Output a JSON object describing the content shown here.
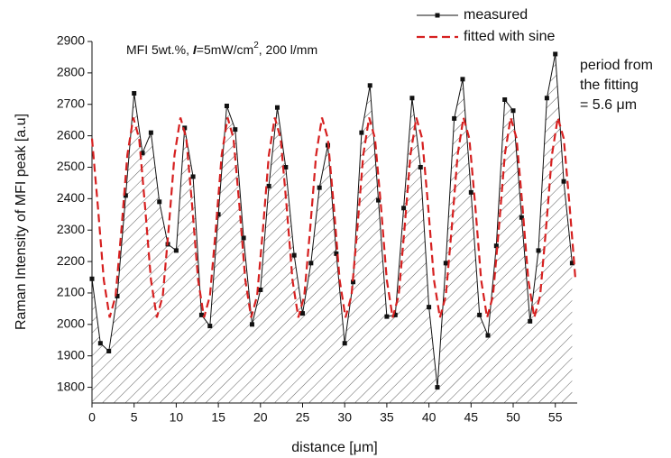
{
  "chart_data": {
    "type": "line",
    "ylabel": "Raman Intensity of MFI peak [a.u]",
    "xlabel": "distance [μm]",
    "annotation_parts": [
      "MFI 5wt.%, ",
      "I",
      "=5mW/cm",
      "2",
      ", 200 l/mm"
    ],
    "side_note": [
      "period from",
      "the fitting",
      "= 5.6 μm"
    ],
    "xlim": [
      0,
      57.6
    ],
    "ylim": [
      1750,
      2900
    ],
    "xticks": [
      0,
      5,
      10,
      15,
      20,
      25,
      30,
      35,
      40,
      45,
      50,
      55
    ],
    "yticks": [
      1800,
      1900,
      2000,
      2100,
      2200,
      2300,
      2400,
      2500,
      2600,
      2700,
      2800,
      2900
    ],
    "series": [
      {
        "name": "measured",
        "color": "#111111",
        "hatched": true,
        "x": [
          0,
          1,
          2,
          3,
          4,
          5,
          6,
          7,
          8,
          9,
          10,
          11,
          12,
          13,
          14,
          15,
          16,
          17,
          18,
          19,
          20,
          21,
          22,
          23,
          24,
          25,
          26,
          27,
          28,
          29,
          30,
          31,
          32,
          33,
          34,
          35,
          36,
          37,
          38,
          39,
          40,
          41,
          42,
          43,
          44,
          45,
          46,
          47,
          48,
          49,
          50,
          51,
          52,
          53,
          54,
          55,
          56,
          57
        ],
        "values": [
          2145,
          1940,
          1915,
          2090,
          2410,
          2735,
          2545,
          2610,
          2390,
          2255,
          2235,
          2625,
          2470,
          2030,
          1995,
          2350,
          2695,
          2620,
          2275,
          2000,
          2110,
          2440,
          2690,
          2500,
          2220,
          2035,
          2195,
          2435,
          2570,
          2225,
          1940,
          2135,
          2610,
          2760,
          2395,
          2025,
          2030,
          2370,
          2720,
          2500,
          2055,
          1800,
          2195,
          2655,
          2780,
          2420,
          2030,
          1965,
          2250,
          2715,
          2680,
          2340,
          2010,
          2235,
          2720,
          2860,
          2455,
          2195
        ]
      },
      {
        "name": "fitted with sine",
        "color": "#d62020",
        "dashed": true,
        "x": [
          0,
          0.7,
          1.4,
          2.1,
          2.8,
          3.5,
          4.2,
          4.9,
          5.6,
          6.3,
          7,
          7.7,
          8.4,
          9.1,
          9.8,
          10.5,
          11.2,
          11.9,
          12.6,
          13.3,
          14,
          14.7,
          15.4,
          16.1,
          16.8,
          17.5,
          18.2,
          18.9,
          19.6,
          20.3,
          21,
          21.7,
          22.4,
          23.1,
          23.8,
          24.5,
          25.2,
          25.9,
          26.6,
          27.3,
          28,
          28.7,
          29.4,
          30.1,
          30.8,
          31.5,
          32.2,
          32.9,
          33.6,
          34.3,
          35,
          35.7,
          36.4,
          37.1,
          37.8,
          38.5,
          39.2,
          39.9,
          40.6,
          41.3,
          42,
          42.7,
          43.4,
          44.1,
          44.8,
          45.5,
          46.2,
          46.9,
          47.6,
          48.3,
          49,
          49.7,
          50.4,
          51.1,
          51.8,
          52.5,
          53.2,
          53.9,
          54.6,
          55.3,
          56,
          56.7,
          57.4
        ],
        "values": [
          2591,
          2376,
          2141,
          2022,
          2091,
          2304,
          2539,
          2658,
          2591,
          2376,
          2141,
          2022,
          2091,
          2304,
          2539,
          2658,
          2591,
          2376,
          2141,
          2022,
          2091,
          2304,
          2539,
          2658,
          2591,
          2376,
          2141,
          2022,
          2091,
          2304,
          2539,
          2658,
          2591,
          2376,
          2141,
          2022,
          2091,
          2304,
          2539,
          2658,
          2591,
          2376,
          2141,
          2022,
          2091,
          2304,
          2539,
          2658,
          2591,
          2376,
          2141,
          2022,
          2091,
          2304,
          2539,
          2658,
          2591,
          2376,
          2141,
          2022,
          2091,
          2304,
          2539,
          2658,
          2591,
          2376,
          2141,
          2022,
          2091,
          2304,
          2539,
          2658,
          2591,
          2376,
          2141,
          2022,
          2091,
          2304,
          2539,
          2658,
          2591,
          2376,
          2141
        ]
      }
    ]
  }
}
